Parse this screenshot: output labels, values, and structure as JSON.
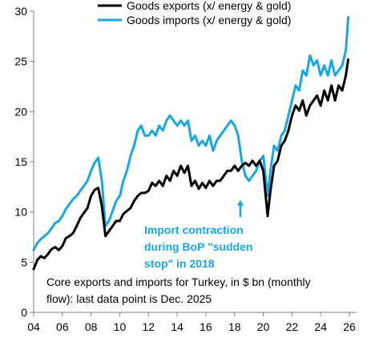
{
  "chart_data": {
    "type": "line",
    "title": "",
    "xlabel": "",
    "ylabel": "",
    "xlim": [
      2004,
      2026.5
    ],
    "ylim": [
      0,
      30
    ],
    "grid": false,
    "legend_position": "top",
    "x_ticks": [
      2004,
      2006,
      2008,
      2010,
      2012,
      2014,
      2016,
      2018,
      2020,
      2022,
      2024,
      2026
    ],
    "x_tick_labels": [
      "04",
      "06",
      "08",
      "10",
      "12",
      "14",
      "16",
      "18",
      "20",
      "22",
      "24",
      "26"
    ],
    "y_ticks": [
      0,
      5,
      10,
      15,
      20,
      25,
      30
    ],
    "y_tick_labels": [
      "0",
      "5",
      "10",
      "15",
      "20",
      "25",
      "30"
    ],
    "series": [
      {
        "name": "Goods exports (x/ energy & gold)",
        "color": "#000000",
        "points": [
          [
            2004.0,
            4.3
          ],
          [
            2004.25,
            5.2
          ],
          [
            2004.5,
            5.6
          ],
          [
            2004.75,
            5.4
          ],
          [
            2005.0,
            5.8
          ],
          [
            2005.25,
            6.3
          ],
          [
            2005.5,
            6.5
          ],
          [
            2005.75,
            6.2
          ],
          [
            2006.0,
            6.6
          ],
          [
            2006.25,
            7.4
          ],
          [
            2006.5,
            7.6
          ],
          [
            2006.75,
            7.9
          ],
          [
            2007.0,
            8.6
          ],
          [
            2007.25,
            9.4
          ],
          [
            2007.5,
            9.9
          ],
          [
            2007.75,
            10.4
          ],
          [
            2008.0,
            11.6
          ],
          [
            2008.25,
            12.2
          ],
          [
            2008.5,
            12.4
          ],
          [
            2008.75,
            10.6
          ],
          [
            2009.0,
            7.6
          ],
          [
            2009.25,
            8.1
          ],
          [
            2009.5,
            8.6
          ],
          [
            2009.75,
            9.1
          ],
          [
            2010.0,
            9.1
          ],
          [
            2010.25,
            9.8
          ],
          [
            2010.5,
            10.1
          ],
          [
            2010.75,
            10.4
          ],
          [
            2011.0,
            11.1
          ],
          [
            2011.25,
            11.6
          ],
          [
            2011.5,
            11.9
          ],
          [
            2011.75,
            11.9
          ],
          [
            2012.0,
            12.1
          ],
          [
            2012.25,
            12.9
          ],
          [
            2012.5,
            12.6
          ],
          [
            2012.75,
            13.1
          ],
          [
            2013.0,
            12.6
          ],
          [
            2013.25,
            13.6
          ],
          [
            2013.5,
            13.1
          ],
          [
            2013.75,
            14.1
          ],
          [
            2014.0,
            13.6
          ],
          [
            2014.25,
            14.6
          ],
          [
            2014.5,
            13.9
          ],
          [
            2014.75,
            14.6
          ],
          [
            2015.0,
            12.6
          ],
          [
            2015.25,
            13.1
          ],
          [
            2015.5,
            12.3
          ],
          [
            2015.75,
            12.9
          ],
          [
            2016.0,
            12.4
          ],
          [
            2016.25,
            13.1
          ],
          [
            2016.5,
            12.6
          ],
          [
            2016.75,
            13.1
          ],
          [
            2017.0,
            13.1
          ],
          [
            2017.25,
            13.6
          ],
          [
            2017.5,
            14.1
          ],
          [
            2017.75,
            14.1
          ],
          [
            2018.0,
            14.6
          ],
          [
            2018.25,
            14.1
          ],
          [
            2018.5,
            14.6
          ],
          [
            2018.75,
            14.9
          ],
          [
            2019.0,
            14.6
          ],
          [
            2019.25,
            15.1
          ],
          [
            2019.5,
            14.6
          ],
          [
            2019.75,
            15.1
          ],
          [
            2020.0,
            14.1
          ],
          [
            2020.3,
            9.6
          ],
          [
            2020.5,
            12.1
          ],
          [
            2020.75,
            14.6
          ],
          [
            2021.0,
            15.1
          ],
          [
            2021.25,
            16.6
          ],
          [
            2021.5,
            17.1
          ],
          [
            2021.75,
            18.1
          ],
          [
            2022.0,
            19.6
          ],
          [
            2022.25,
            20.6
          ],
          [
            2022.5,
            20.1
          ],
          [
            2022.75,
            21.1
          ],
          [
            2023.0,
            19.6
          ],
          [
            2023.25,
            20.6
          ],
          [
            2023.5,
            21.1
          ],
          [
            2023.75,
            21.6
          ],
          [
            2024.0,
            20.6
          ],
          [
            2024.25,
            22.1
          ],
          [
            2024.5,
            21.1
          ],
          [
            2024.75,
            22.6
          ],
          [
            2025.0,
            21.1
          ],
          [
            2025.25,
            22.6
          ],
          [
            2025.5,
            22.1
          ],
          [
            2025.75,
            23.6
          ],
          [
            2025.92,
            25.2
          ]
        ]
      },
      {
        "name": "Goods imports (x/ energy & gold)",
        "color": "#19a7e0",
        "points": [
          [
            2004.0,
            6.2
          ],
          [
            2004.25,
            6.9
          ],
          [
            2004.5,
            7.3
          ],
          [
            2004.75,
            7.6
          ],
          [
            2005.0,
            7.9
          ],
          [
            2005.25,
            8.4
          ],
          [
            2005.5,
            8.9
          ],
          [
            2005.75,
            9.1
          ],
          [
            2006.0,
            9.6
          ],
          [
            2006.25,
            10.3
          ],
          [
            2006.5,
            10.8
          ],
          [
            2006.75,
            11.3
          ],
          [
            2007.0,
            11.6
          ],
          [
            2007.25,
            12.1
          ],
          [
            2007.5,
            12.6
          ],
          [
            2007.75,
            13.1
          ],
          [
            2008.0,
            14.1
          ],
          [
            2008.25,
            14.9
          ],
          [
            2008.5,
            15.4
          ],
          [
            2008.75,
            13.1
          ],
          [
            2009.0,
            8.6
          ],
          [
            2009.25,
            9.1
          ],
          [
            2009.5,
            10.1
          ],
          [
            2009.75,
            11.1
          ],
          [
            2010.0,
            11.6
          ],
          [
            2010.25,
            13.1
          ],
          [
            2010.5,
            14.1
          ],
          [
            2010.75,
            15.6
          ],
          [
            2011.0,
            16.6
          ],
          [
            2011.25,
            18.1
          ],
          [
            2011.5,
            18.6
          ],
          [
            2011.75,
            17.6
          ],
          [
            2012.0,
            17.6
          ],
          [
            2012.25,
            18.1
          ],
          [
            2012.5,
            17.6
          ],
          [
            2012.75,
            18.6
          ],
          [
            2013.0,
            18.1
          ],
          [
            2013.25,
            19.1
          ],
          [
            2013.5,
            19.6
          ],
          [
            2013.75,
            19.1
          ],
          [
            2014.0,
            18.6
          ],
          [
            2014.25,
            19.1
          ],
          [
            2014.5,
            18.6
          ],
          [
            2014.75,
            19.1
          ],
          [
            2015.0,
            17.1
          ],
          [
            2015.25,
            17.6
          ],
          [
            2015.5,
            16.6
          ],
          [
            2015.75,
            17.1
          ],
          [
            2016.0,
            16.6
          ],
          [
            2016.25,
            17.6
          ],
          [
            2016.5,
            16.1
          ],
          [
            2016.75,
            17.1
          ],
          [
            2017.0,
            17.6
          ],
          [
            2017.25,
            18.1
          ],
          [
            2017.5,
            18.6
          ],
          [
            2017.75,
            19.1
          ],
          [
            2018.0,
            18.6
          ],
          [
            2018.25,
            17.6
          ],
          [
            2018.5,
            15.1
          ],
          [
            2018.75,
            13.6
          ],
          [
            2019.0,
            13.1
          ],
          [
            2019.25,
            13.6
          ],
          [
            2019.5,
            14.1
          ],
          [
            2019.75,
            15.1
          ],
          [
            2020.0,
            15.6
          ],
          [
            2020.3,
            11.6
          ],
          [
            2020.5,
            14.1
          ],
          [
            2020.75,
            16.6
          ],
          [
            2021.0,
            16.1
          ],
          [
            2021.25,
            17.6
          ],
          [
            2021.5,
            18.1
          ],
          [
            2021.75,
            19.6
          ],
          [
            2022.0,
            21.1
          ],
          [
            2022.25,
            22.6
          ],
          [
            2022.5,
            22.1
          ],
          [
            2022.75,
            24.1
          ],
          [
            2023.0,
            23.6
          ],
          [
            2023.25,
            25.6
          ],
          [
            2023.5,
            24.6
          ],
          [
            2023.75,
            25.1
          ],
          [
            2024.0,
            23.6
          ],
          [
            2024.25,
            24.6
          ],
          [
            2024.5,
            23.6
          ],
          [
            2024.75,
            25.1
          ],
          [
            2025.0,
            23.6
          ],
          [
            2025.25,
            24.1
          ],
          [
            2025.5,
            24.6
          ],
          [
            2025.75,
            26.1
          ],
          [
            2025.92,
            29.4
          ]
        ]
      }
    ],
    "annotations": [
      {
        "lines": [
          "Import contraction",
          "during BoP \"sudden",
          "stop\" in 2018"
        ],
        "arrow_from": [
          2018.4,
          9.5
        ],
        "arrow_to": [
          2018.4,
          11.2
        ],
        "color": "#19a7e0"
      }
    ],
    "note": [
      "Core exports and imports for Turkey, in $ bn (monthly",
      "flow): last data point is Dec. 2025"
    ]
  }
}
